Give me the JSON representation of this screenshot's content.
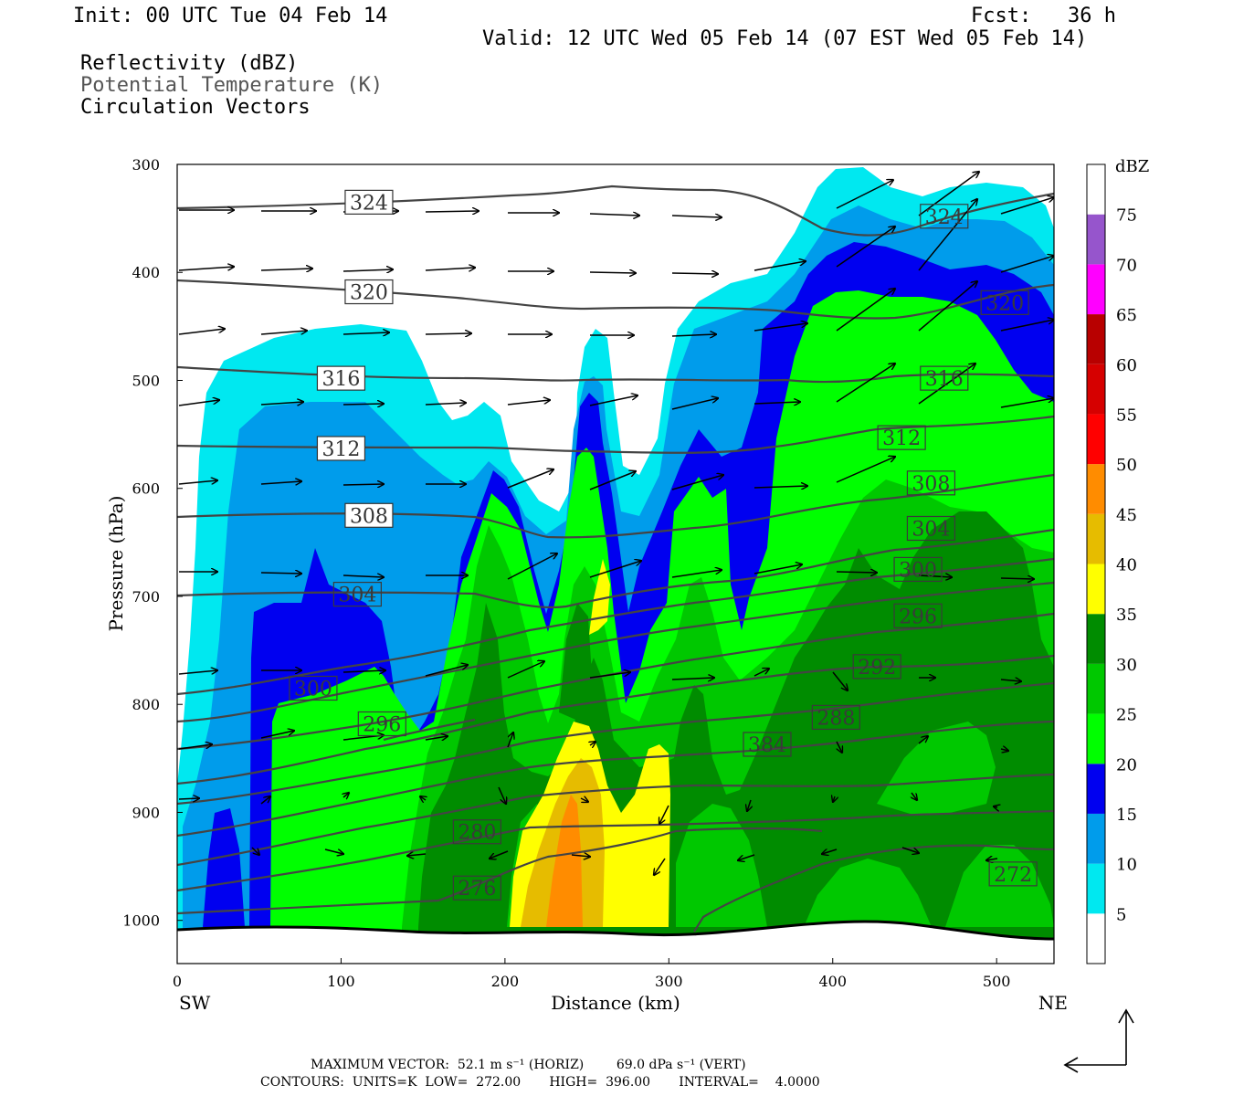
{
  "header": {
    "init": "Init: 00 UTC Tue 04 Feb 14",
    "fcst": "Fcst:   36 h",
    "valid": "Valid: 12 UTC Wed 05 Feb 14 (07 EST Wed 05 Feb 14)",
    "fields": [
      "Reflectivity (dBZ)",
      "Potential Temperature (K)",
      "Circulation Vectors"
    ]
  },
  "footer": {
    "max_vector": "MAXIMUM VECTOR:  52.1 m s⁻¹ (HORIZ)        69.0 dPa s⁻¹ (VERT)",
    "contours": "CONTOURS:  UNITS=K  LOW=  272.00       HIGH=  396.00       INTERVAL=    4.0000"
  },
  "chart_data": {
    "type": "cross-section",
    "title": "Reflectivity (dBZ) / Potential Temperature (K) / Circulation Vectors",
    "xlabel": "Distance (km)",
    "ylabel": "Pressure (hPa)",
    "xlim": [
      0,
      535
    ],
    "ylim": [
      300,
      1040
    ],
    "x_ticks": [
      0,
      100,
      200,
      300,
      400,
      500
    ],
    "y_ticks": [
      300,
      400,
      500,
      600,
      700,
      800,
      900,
      1000
    ],
    "x_end_labels": {
      "left": "SW",
      "right": "NE"
    },
    "colorbar": {
      "unit": "dBZ",
      "levels": [
        5,
        10,
        15,
        20,
        25,
        30,
        35,
        40,
        45,
        50,
        55,
        60,
        65,
        70,
        75
      ],
      "colors": [
        "#ffffff",
        "#00e8f0",
        "#009ceb",
        "#0000f0",
        "#00ff00",
        "#00c800",
        "#008c00",
        "#ffff00",
        "#e6bc00",
        "#ff8c00",
        "#ff0000",
        "#d60000",
        "#b80000",
        "#ff00ff",
        "#9655cc"
      ]
    },
    "theta_labels": [
      {
        "value": "324",
        "x": 117,
        "p": 335,
        "dark": false
      },
      {
        "value": "324",
        "x": 468,
        "p": 348,
        "dark": true
      },
      {
        "value": "320",
        "x": 117,
        "p": 418,
        "dark": false
      },
      {
        "value": "320",
        "x": 505,
        "p": 428,
        "dark": true
      },
      {
        "value": "316",
        "x": 100,
        "p": 498,
        "dark": false
      },
      {
        "value": "316",
        "x": 468,
        "p": 498,
        "dark": true
      },
      {
        "value": "312",
        "x": 100,
        "p": 563,
        "dark": false
      },
      {
        "value": "312",
        "x": 442,
        "p": 553,
        "dark": true
      },
      {
        "value": "308",
        "x": 117,
        "p": 625,
        "dark": false
      },
      {
        "value": "308",
        "x": 460,
        "p": 595,
        "dark": true
      },
      {
        "value": "304",
        "x": 110,
        "p": 698,
        "dark": true
      },
      {
        "value": "304",
        "x": 460,
        "p": 637,
        "dark": true
      },
      {
        "value": "300",
        "x": 83,
        "p": 785,
        "dark": true
      },
      {
        "value": "300",
        "x": 452,
        "p": 675,
        "dark": true
      },
      {
        "value": "296",
        "x": 125,
        "p": 818,
        "dark": true
      },
      {
        "value": "296",
        "x": 452,
        "p": 718,
        "dark": true
      },
      {
        "value": "292",
        "x": 427,
        "p": 765,
        "dark": true
      },
      {
        "value": "288",
        "x": 402,
        "p": 812,
        "dark": true
      },
      {
        "value": "384",
        "x": 360,
        "p": 837,
        "dark": true
      },
      {
        "value": "280",
        "x": 183,
        "p": 918,
        "dark": true
      },
      {
        "value": "276",
        "x": 183,
        "p": 970,
        "dark": true
      },
      {
        "value": "272",
        "x": 510,
        "p": 957,
        "dark": true
      }
    ]
  }
}
